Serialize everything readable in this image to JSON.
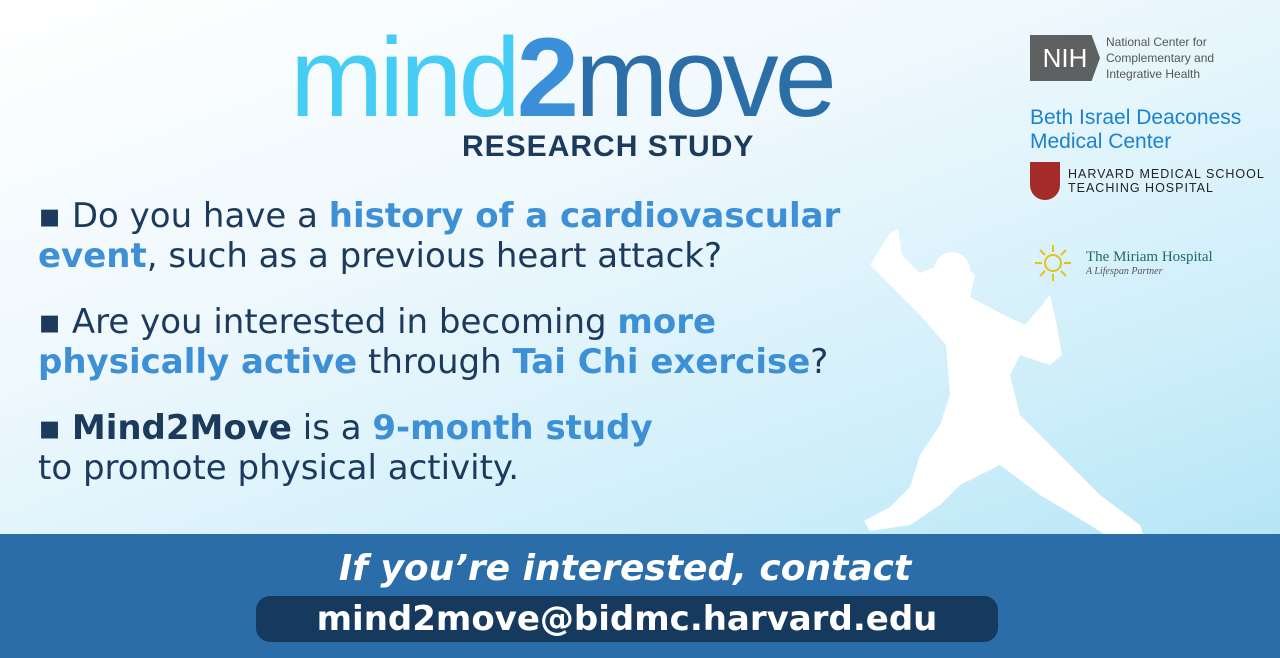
{
  "logo": {
    "word_part1": "mind",
    "word_part2": "2",
    "word_part3": "move",
    "subtitle": "RESEARCH STUDY"
  },
  "bullets": [
    {
      "pre": "▪ Do you have a ",
      "hl1": "history of a cardiovascular event",
      "mid": ", such as a previous heart attack?"
    },
    {
      "pre": "▪ Are you interested in becoming ",
      "hl1": "more physically active",
      "mid": " through ",
      "hl2": "Tai Chi exercise",
      "post": "?"
    },
    {
      "pre": "▪ ",
      "strong": "Mind2Move",
      "mid": " is a ",
      "hl1": "9-month study",
      "post": " to promote physical activity."
    }
  ],
  "partners": {
    "nih_mark": "NIH",
    "nih_text": [
      "National Center for",
      "Complementary and",
      "Integrative Health"
    ],
    "bidmc": [
      "Beth Israel Deaconess",
      "Medical Center"
    ],
    "hms": [
      "HARVARD MEDICAL SCHOOL",
      "TEACHING HOSPITAL"
    ],
    "miriam": "The Miriam Hospital",
    "miriam_tag": "A Lifespan Partner"
  },
  "contact": {
    "text": "If you’re interested, contact",
    "email": "mind2move@bidmc.harvard.edu"
  },
  "colors": {
    "navy": "#1b3a5c",
    "highlight": "#3d8fd6",
    "band": "#2b6da9",
    "pill": "#163a5e",
    "logo_light": "#46cdf5",
    "logo_dark": "#2c6ea8"
  }
}
